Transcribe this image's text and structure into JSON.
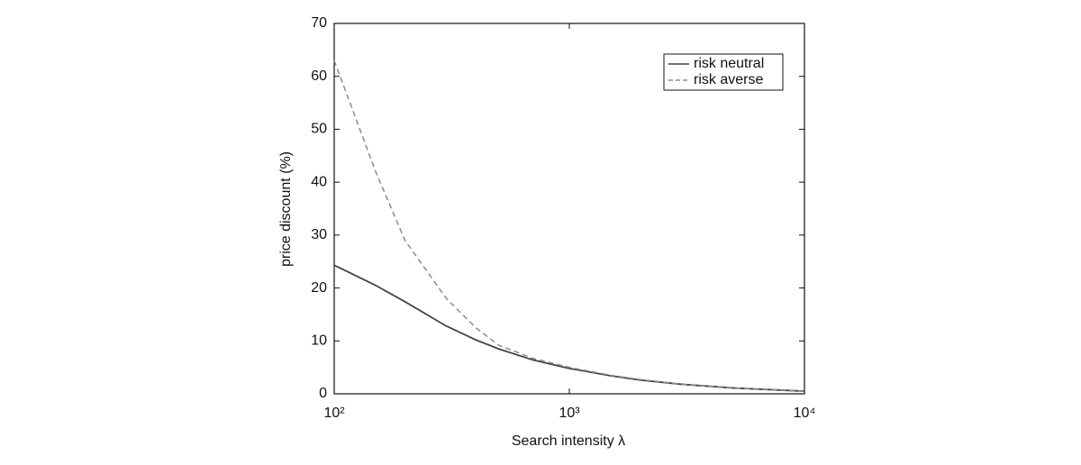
{
  "chart_data": {
    "type": "line",
    "xlabel": "Search intensity λ",
    "ylabel": "price discount (%)",
    "x": [
      100,
      150,
      200,
      300,
      400,
      500,
      700,
      1000,
      1500,
      2000,
      3000,
      5000,
      7000,
      10000
    ],
    "series": [
      {
        "name": "risk neutral",
        "color": "#444444",
        "dash": false,
        "values": [
          24.3,
          20.5,
          17.4,
          12.8,
          10.2,
          8.5,
          6.4,
          4.8,
          3.4,
          2.6,
          1.8,
          1.1,
          0.8,
          0.5
        ]
      },
      {
        "name": "risk averse",
        "color": "#8c8c8c",
        "dash": true,
        "values": [
          63,
          42,
          29,
          18,
          12.5,
          9.2,
          6.7,
          5.0,
          3.5,
          2.7,
          1.8,
          1.1,
          0.8,
          0.5
        ]
      }
    ],
    "xscale": "log",
    "xlim": [
      100,
      10000
    ],
    "xticks": [
      {
        "value": 100,
        "label": "10²"
      },
      {
        "value": 1000,
        "label": "10³"
      },
      {
        "value": 10000,
        "label": "10⁴"
      }
    ],
    "ylim": [
      0,
      70
    ],
    "yticks": [
      0,
      10,
      20,
      30,
      40,
      50,
      60,
      70
    ],
    "legend": "upper right"
  }
}
